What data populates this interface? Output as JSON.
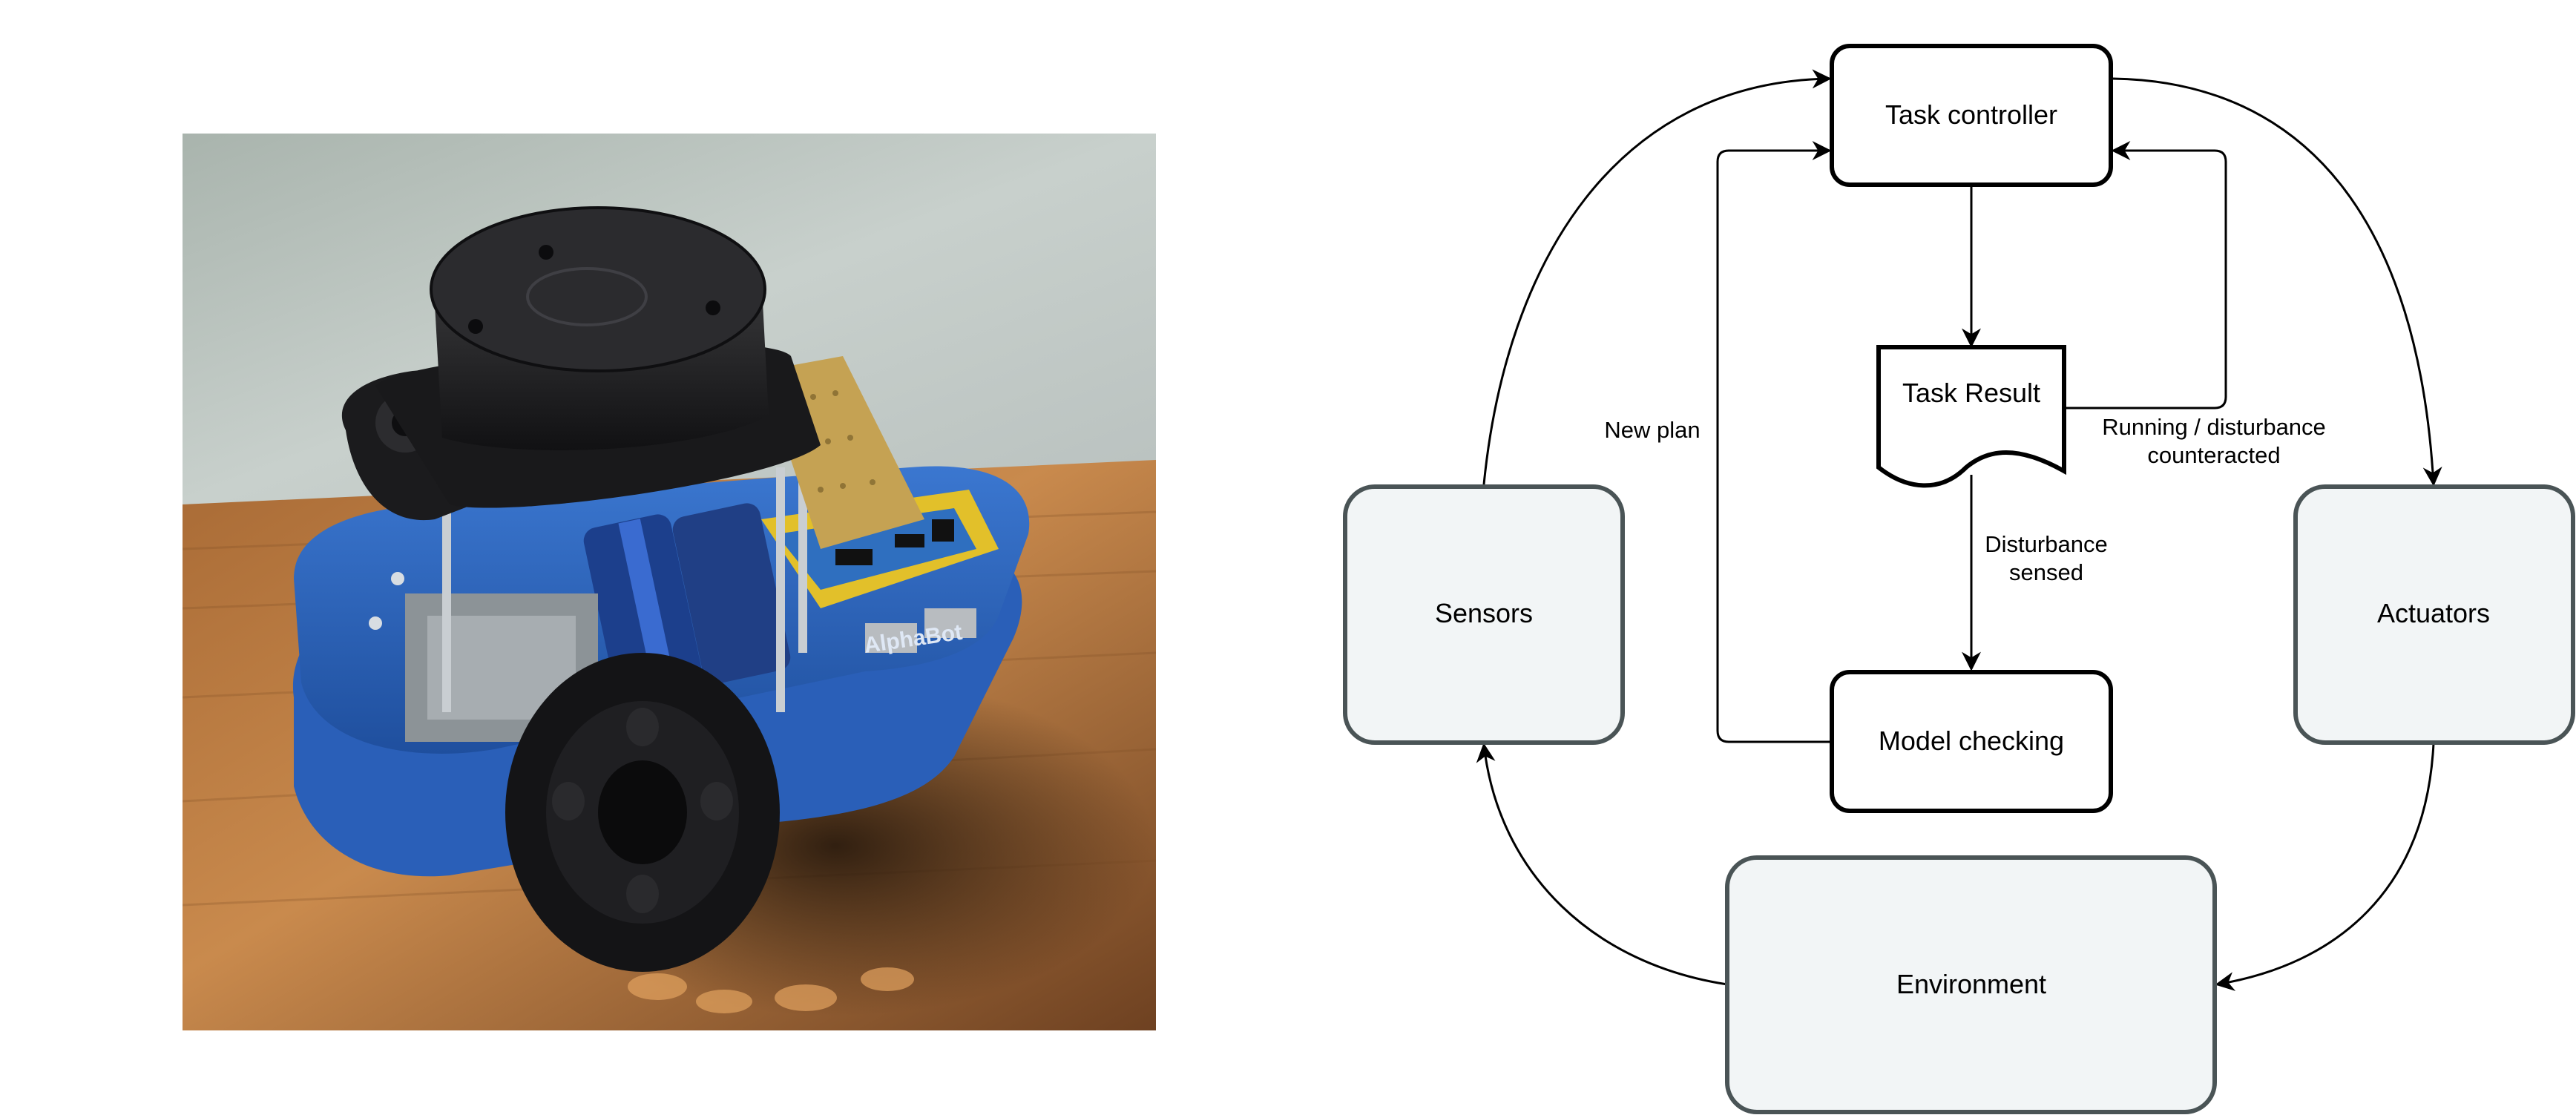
{
  "photo": {
    "alt": "AlphaBot",
    "brand_text": "AlphaBot"
  },
  "diagram": {
    "nodes": {
      "task_controller": "Task controller",
      "task_result": "Task Result",
      "model_checking": "Model checking",
      "sensors": "Sensors",
      "actuators": "Actuators",
      "environment": "Environment"
    },
    "edge_labels": {
      "new_plan": "New plan",
      "running_line1": "Running / disturbance",
      "running_line2": "counteracted",
      "disturbance_line1": "Disturbance",
      "disturbance_line2": "sensed"
    }
  }
}
